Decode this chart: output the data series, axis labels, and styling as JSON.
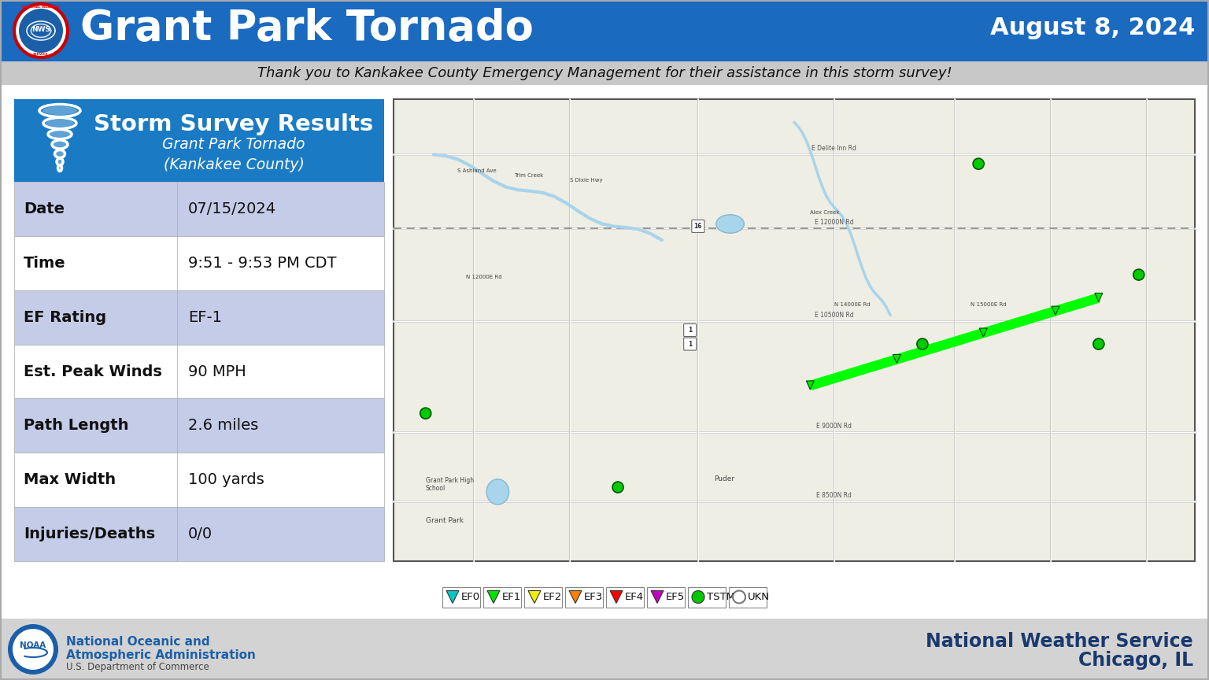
{
  "title": "Grant Park Tornado",
  "date_label": "August 8, 2024",
  "subtitle": "Thank you to Kankakee County Emergency Management for their assistance in this storm survey!",
  "header_bg": "#1a6abf",
  "header_sub_bg": "#c8c8c8",
  "table_header_bg": "#1a7bc4",
  "table_header_title": "Storm Survey Results",
  "table_header_subtitle": "Grant Park Tornado\n(Kankakee County)",
  "table_rows": [
    {
      "label": "Date",
      "value": "07/15/2024",
      "shaded": true
    },
    {
      "label": "Time",
      "value": "9:51 - 9:53 PM CDT",
      "shaded": false
    },
    {
      "label": "EF Rating",
      "value": "EF-1",
      "shaded": true
    },
    {
      "label": "Est. Peak Winds",
      "value": "90 MPH",
      "shaded": false
    },
    {
      "label": "Path Length",
      "value": "2.6 miles",
      "shaded": true
    },
    {
      "label": "Max Width",
      "value": "100 yards",
      "shaded": false
    },
    {
      "label": "Injuries/Deaths",
      "value": "0/0",
      "shaded": true
    }
  ],
  "table_row_shaded_color": "#c5cce8",
  "table_row_unshaded_color": "#ffffff",
  "body_bg": "#ffffff",
  "footer_bg": "#d3d3d3",
  "nws_text": "National Weather Service\nChicago, IL",
  "nws_color": "#1a3a6e",
  "noaa_color": "#1a5fa8",
  "legend_items": [
    {
      "label": "EF0",
      "color": "#00c8c8",
      "type": "tornado"
    },
    {
      "label": "EF1",
      "color": "#00e400",
      "type": "tornado"
    },
    {
      "label": "EF2",
      "color": "#f0f000",
      "type": "tornado"
    },
    {
      "label": "EF3",
      "color": "#ff8000",
      "type": "tornado"
    },
    {
      "label": "EF4",
      "color": "#ff0000",
      "type": "tornado"
    },
    {
      "label": "EF5",
      "color": "#c000c0",
      "type": "tornado"
    },
    {
      "label": "TSTM",
      "color": "#00c800",
      "type": "circle"
    },
    {
      "label": "UKN",
      "color": "#808080",
      "type": "circle_outline"
    }
  ],
  "map_bg": "#eeeee4",
  "map_road_color": "#ffffff",
  "map_road_edge": "#cccccc",
  "tornado_track_color": "#00ff00",
  "survey_dot_color": "#00cc00"
}
